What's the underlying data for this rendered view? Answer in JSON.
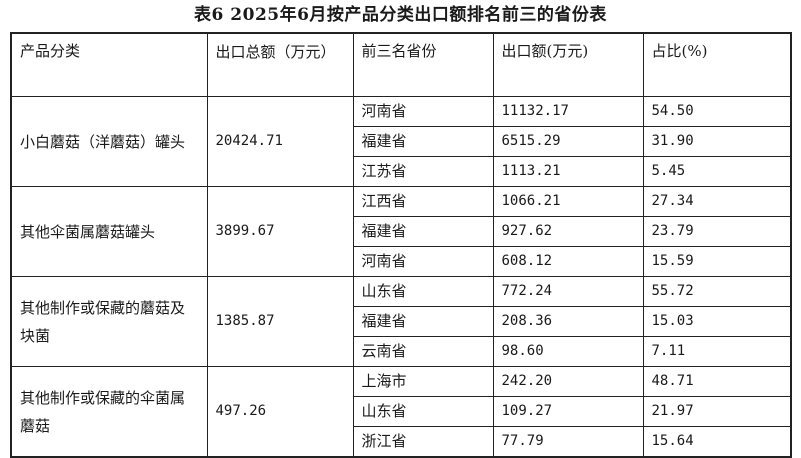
{
  "title": "表6  2025年6月按产品分类出口额排名前三的省份表",
  "headers": {
    "category": "产品分类",
    "total": "出口总额（万元）",
    "province": "前三名省份",
    "amount": "出口额(万元)",
    "share": "占比(%)"
  },
  "groups": [
    {
      "category": "小白蘑菇（洋蘑菇）罐头",
      "total": "20424.71",
      "rows": [
        {
          "province": "河南省",
          "amount": "11132.17",
          "share": "54.50"
        },
        {
          "province": "福建省",
          "amount": "6515.29",
          "share": "31.90"
        },
        {
          "province": "江苏省",
          "amount": "1113.21",
          "share": "5.45"
        }
      ]
    },
    {
      "category": "其他伞菌属蘑菇罐头",
      "total": "3899.67",
      "rows": [
        {
          "province": "江西省",
          "amount": "1066.21",
          "share": "27.34"
        },
        {
          "province": "福建省",
          "amount": "927.62",
          "share": "23.79"
        },
        {
          "province": "河南省",
          "amount": "608.12",
          "share": "15.59"
        }
      ]
    },
    {
      "category": "其他制作或保藏的蘑菇及块菌",
      "total": "1385.87",
      "rows": [
        {
          "province": "山东省",
          "amount": "772.24",
          "share": "55.72"
        },
        {
          "province": "福建省",
          "amount": "208.36",
          "share": "15.03"
        },
        {
          "province": "云南省",
          "amount": "98.60",
          "share": "7.11"
        }
      ]
    },
    {
      "category": "其他制作或保藏的伞菌属蘑菇",
      "total": "497.26",
      "rows": [
        {
          "province": "上海市",
          "amount": "242.20",
          "share": "48.71"
        },
        {
          "province": "山东省",
          "amount": "109.27",
          "share": "21.97"
        },
        {
          "province": "浙江省",
          "amount": "77.79",
          "share": "15.64"
        }
      ]
    }
  ]
}
